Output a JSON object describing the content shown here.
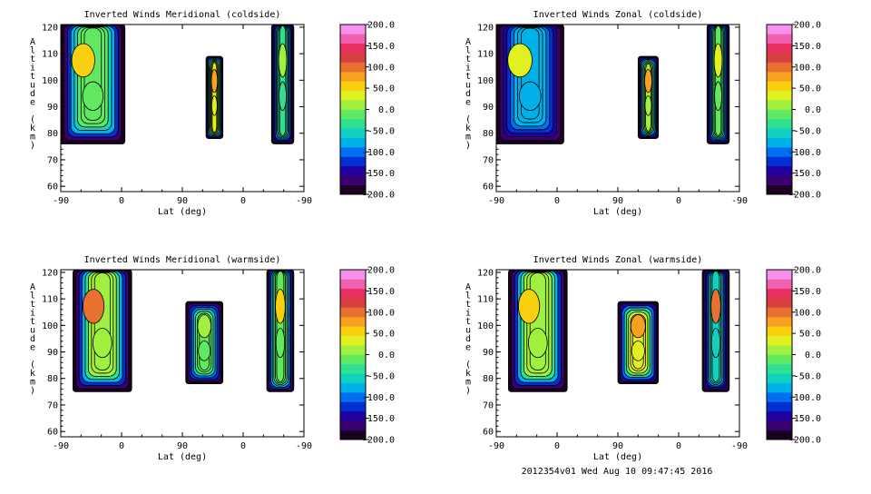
{
  "footer": "2012354v01 Wed Aug 10 09:47:45 2016",
  "colors": {
    "scale": [
      "#1a0020",
      "#3a0070",
      "#2200a0",
      "#0030d0",
      "#0070f0",
      "#00b0e8",
      "#10d0c0",
      "#30e090",
      "#60e860",
      "#a0f040",
      "#e0f020",
      "#f8d010",
      "#f8a020",
      "#e87030",
      "#d84040",
      "#e83060",
      "#f060b0",
      "#f890f0"
    ]
  },
  "chart_data": [
    {
      "type": "heatmap",
      "title": "Inverted Winds Meridional (coldside)",
      "xlabel": "Lat (deg)",
      "ylabel": "Altitude (km)",
      "x_tick_labels": [
        "-90",
        "0",
        "90",
        "0",
        "-90"
      ],
      "y_ticks": [
        60,
        70,
        80,
        90,
        100,
        110,
        120
      ],
      "ylim": [
        58,
        121
      ],
      "colorbar": {
        "min": -200,
        "max": 200,
        "ticks": [
          "200.0",
          "150.0",
          "100.0",
          "50.0",
          "0.0",
          "-50.0",
          "-100.0",
          "-150.0",
          "-200.0"
        ]
      },
      "regions": [
        {
          "name": "region-1",
          "lon_range": [
            -90,
            5
          ],
          "alt_range": [
            76,
            121
          ],
          "core_value": -10,
          "peak_value": 60
        },
        {
          "name": "region-2",
          "lon_range": [
            125,
            150
          ],
          "alt_range": [
            78,
            109
          ],
          "core_value": 25,
          "peak_value": 70
        },
        {
          "name": "region-3",
          "lon_range": [
            222,
            255
          ],
          "alt_range": [
            76,
            121
          ],
          "core_value": -40,
          "peak_value": 0
        }
      ]
    },
    {
      "type": "heatmap",
      "title": "Inverted Winds Zonal (coldside)",
      "xlabel": "Lat (deg)",
      "ylabel": "Altitude (km)",
      "x_tick_labels": [
        "-90",
        "0",
        "90",
        "0",
        "-90"
      ],
      "y_ticks": [
        60,
        70,
        80,
        90,
        100,
        110,
        120
      ],
      "ylim": [
        58,
        121
      ],
      "colorbar": {
        "min": -200,
        "max": 200,
        "ticks": [
          "200.0",
          "150.0",
          "100.0",
          "50.0",
          "0.0",
          "-50.0",
          "-100.0",
          "-150.0",
          "-200.0"
        ]
      },
      "regions": [
        {
          "name": "region-1",
          "lon_range": [
            -90,
            10
          ],
          "alt_range": [
            76,
            121
          ],
          "core_value": -70,
          "peak_value": 40
        },
        {
          "name": "region-2",
          "lon_range": [
            120,
            150
          ],
          "alt_range": [
            78,
            109
          ],
          "core_value": 20,
          "peak_value": 80
        },
        {
          "name": "region-3",
          "lon_range": [
            222,
            255
          ],
          "alt_range": [
            76,
            121
          ],
          "core_value": -20,
          "peak_value": 30
        }
      ]
    },
    {
      "type": "heatmap",
      "title": "Inverted Winds Meridional (warmside)",
      "xlabel": "Lat (deg)",
      "ylabel": "Altitude (km)",
      "x_tick_labels": [
        "-90",
        "0",
        "90",
        "0",
        "-90"
      ],
      "y_ticks": [
        60,
        70,
        80,
        90,
        100,
        110,
        120
      ],
      "ylim": [
        58,
        121
      ],
      "colorbar": {
        "min": -200,
        "max": 200,
        "ticks": [
          "200.0",
          "150.0",
          "100.0",
          "50.0",
          "0.0",
          "-50.0",
          "-100.0",
          "-150.0",
          "-200.0"
        ]
      },
      "regions": [
        {
          "name": "region-1",
          "lon_range": [
            -72,
            15
          ],
          "alt_range": [
            75,
            121
          ],
          "core_value": 20,
          "peak_value": 110
        },
        {
          "name": "region-2",
          "lon_range": [
            95,
            150
          ],
          "alt_range": [
            78,
            109
          ],
          "core_value": -20,
          "peak_value": 10
        },
        {
          "name": "region-3",
          "lon_range": [
            215,
            255
          ],
          "alt_range": [
            75,
            121
          ],
          "core_value": -10,
          "peak_value": 50
        }
      ]
    },
    {
      "type": "heatmap",
      "title": "Inverted Winds Zonal (warmside)",
      "xlabel": "Lat (deg)",
      "ylabel": "Altitude (km)",
      "x_tick_labels": [
        "-90",
        "0",
        "90",
        "0",
        "-90"
      ],
      "y_ticks": [
        60,
        70,
        80,
        90,
        100,
        110,
        120
      ],
      "ylim": [
        58,
        121
      ],
      "colorbar": {
        "min": -200,
        "max": 200,
        "ticks": [
          "200.0",
          "150.0",
          "100.0",
          "50.0",
          "0.0",
          "-50.0",
          "-100.0",
          "-150.0",
          "-200.0"
        ]
      },
      "regions": [
        {
          "name": "region-1",
          "lon_range": [
            -72,
            15
          ],
          "alt_range": [
            75,
            121
          ],
          "core_value": 0,
          "peak_value": 50
        },
        {
          "name": "region-2",
          "lon_range": [
            90,
            150
          ],
          "alt_range": [
            78,
            109
          ],
          "core_value": 30,
          "peak_value": 70
        },
        {
          "name": "region-3",
          "lon_range": [
            215,
            255
          ],
          "alt_range": [
            75,
            121
          ],
          "core_value": -60,
          "peak_value": 90
        }
      ]
    }
  ]
}
